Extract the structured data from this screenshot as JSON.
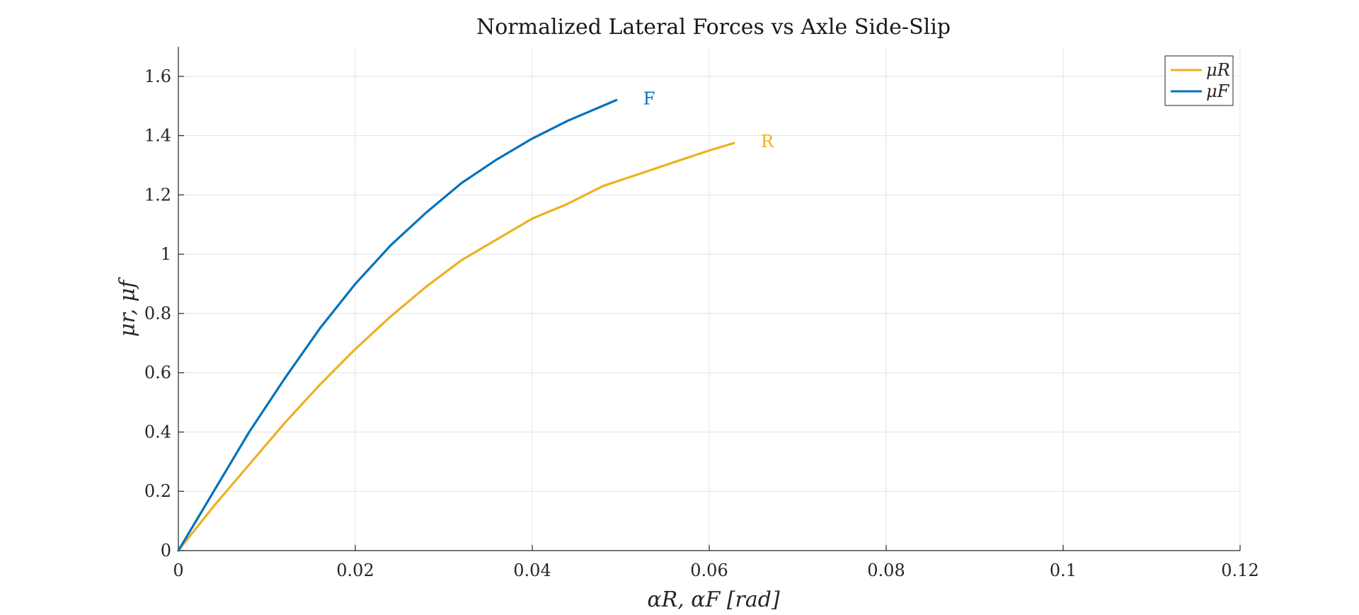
{
  "chart_data": {
    "type": "line",
    "title": "Normalized Lateral Forces vs Axle Side-Slip",
    "xlabel": "αR, αF [rad]",
    "ylabel": "μr, μf",
    "xlim": [
      0,
      0.12
    ],
    "ylim": [
      0,
      1.7
    ],
    "xticks": [
      0,
      0.02,
      0.04,
      0.06,
      0.08,
      0.1,
      0.12
    ],
    "xtick_labels": [
      "0",
      "0.02",
      "0.04",
      "0.06",
      "0.08",
      "0.1",
      "0.12"
    ],
    "yticks": [
      0,
      0.2,
      0.4,
      0.6,
      0.8,
      1,
      1.2,
      1.4,
      1.6
    ],
    "ytick_labels": [
      "0",
      "0.2",
      "0.4",
      "0.6",
      "0.8",
      "1",
      "1.2",
      "1.4",
      "1.6"
    ],
    "grid": true,
    "legend_position": "top-right",
    "series": [
      {
        "name": "μR",
        "color": "#EDB120",
        "end_label": "R",
        "x": [
          0,
          0.004,
          0.008,
          0.012,
          0.016,
          0.02,
          0.024,
          0.028,
          0.032,
          0.036,
          0.04,
          0.044,
          0.048,
          0.052,
          0.056,
          0.06,
          0.0628
        ],
        "y": [
          0,
          0.15,
          0.29,
          0.43,
          0.56,
          0.68,
          0.79,
          0.89,
          0.98,
          1.05,
          1.12,
          1.17,
          1.23,
          1.27,
          1.31,
          1.35,
          1.375
        ]
      },
      {
        "name": "μF",
        "color": "#0072BD",
        "end_label": "F",
        "x": [
          0,
          0.004,
          0.008,
          0.012,
          0.016,
          0.02,
          0.024,
          0.028,
          0.032,
          0.036,
          0.04,
          0.044,
          0.0495
        ],
        "y": [
          0,
          0.2,
          0.4,
          0.58,
          0.75,
          0.9,
          1.03,
          1.14,
          1.24,
          1.32,
          1.39,
          1.45,
          1.52
        ]
      }
    ]
  }
}
